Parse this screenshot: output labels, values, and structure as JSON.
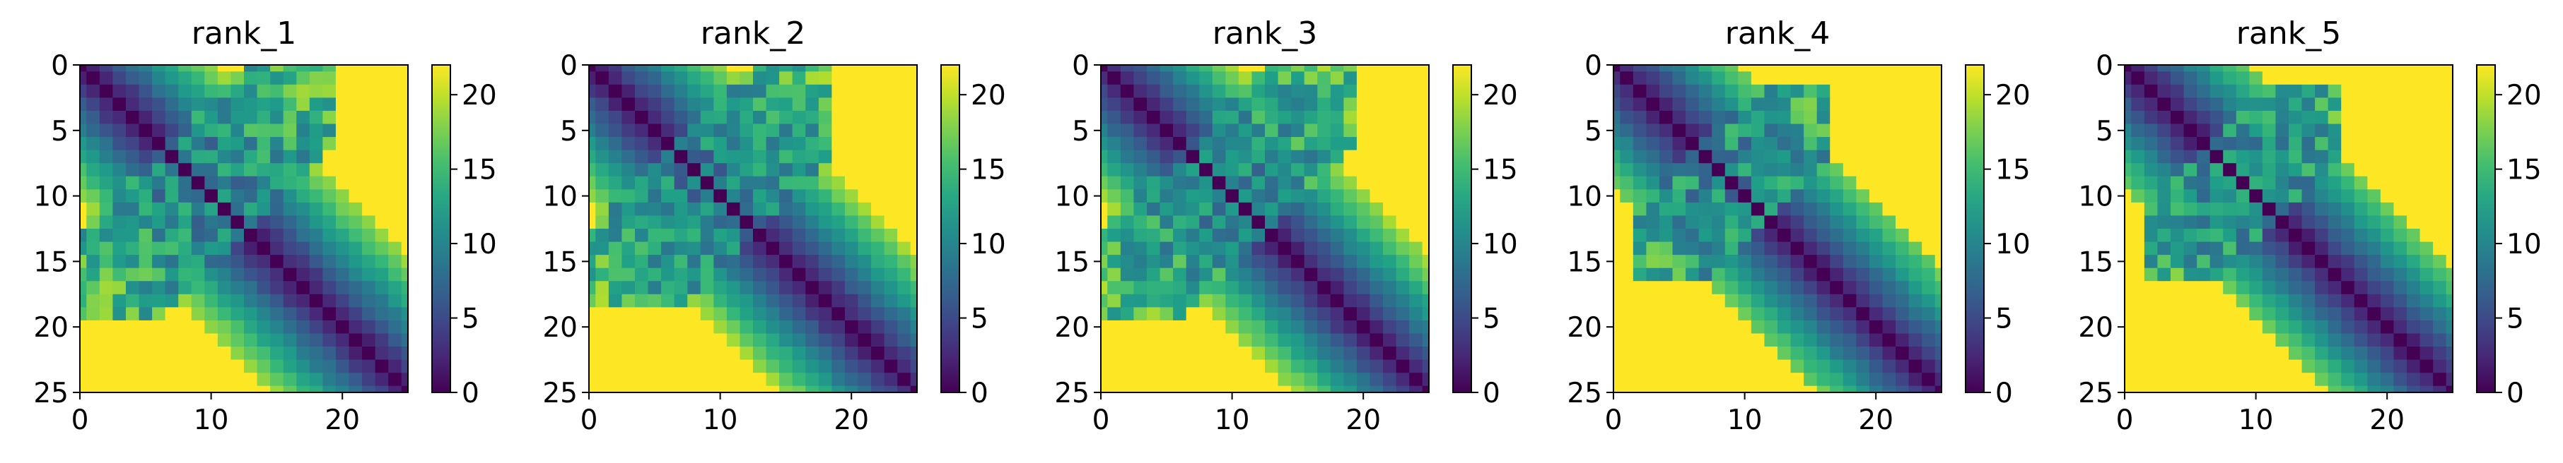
{
  "chart_data": [
    {
      "type": "heatmap",
      "title": "rank_1",
      "matrix_size": 26,
      "xlim": [
        0,
        25
      ],
      "ylim": [
        25,
        0
      ],
      "x_ticks": [
        "0",
        "10",
        "20"
      ],
      "y_ticks": [
        "0",
        "5",
        "10",
        "15",
        "20",
        "25"
      ],
      "colorbar": {
        "range": [
          0,
          22
        ],
        "ticks": [
          "0",
          "5",
          "10",
          "15",
          "20"
        ],
        "colormap": "viridis"
      },
      "saturation_value": 22,
      "description_of_values": "symmetric distance-like matrix; 0 on diagonal, increasing with |i-j|; far cells saturate at 22",
      "region": {
        "diag_band": 10,
        "cross_band": 6,
        "cross_center": 9.5,
        "cross_extent": [
          0,
          19
        ]
      }
    },
    {
      "type": "heatmap",
      "title": "rank_2",
      "matrix_size": 26,
      "xlim": [
        0,
        25
      ],
      "ylim": [
        25,
        0
      ],
      "x_ticks": [
        "0",
        "10",
        "20"
      ],
      "y_ticks": [
        "0",
        "5",
        "10",
        "15",
        "20",
        "25"
      ],
      "colorbar": {
        "range": [
          0,
          22
        ],
        "ticks": [
          "0",
          "5",
          "10",
          "15",
          "20"
        ],
        "colormap": "viridis"
      },
      "saturation_value": 22,
      "region": {
        "diag_band": 10,
        "cross_band": 6,
        "cross_center": 9.5,
        "cross_extent": [
          0,
          18
        ]
      }
    },
    {
      "type": "heatmap",
      "title": "rank_3",
      "matrix_size": 26,
      "xlim": [
        0,
        25
      ],
      "ylim": [
        25,
        0
      ],
      "x_ticks": [
        "0",
        "10",
        "20"
      ],
      "y_ticks": [
        "0",
        "5",
        "10",
        "15",
        "20",
        "25"
      ],
      "colorbar": {
        "range": [
          0,
          22
        ],
        "ticks": [
          "0",
          "5",
          "10",
          "15",
          "20"
        ],
        "colormap": "viridis"
      },
      "saturation_value": 22,
      "region": {
        "diag_band": 10,
        "cross_band": 6,
        "cross_center": 9.5,
        "cross_extent": [
          0,
          19
        ]
      }
    },
    {
      "type": "heatmap",
      "title": "rank_4",
      "matrix_size": 26,
      "xlim": [
        0,
        25
      ],
      "ylim": [
        25,
        0
      ],
      "x_ticks": [
        "0",
        "10",
        "20"
      ],
      "y_ticks": [
        "0",
        "5",
        "10",
        "15",
        "20",
        "25"
      ],
      "colorbar": {
        "range": [
          0,
          22
        ],
        "ticks": [
          "0",
          "5",
          "10",
          "15",
          "20"
        ],
        "colormap": "viridis"
      },
      "saturation_value": 22,
      "region": {
        "diag_band": 9,
        "cross_band": 5,
        "cross_center": 9.0,
        "cross_extent": [
          2,
          16
        ]
      }
    },
    {
      "type": "heatmap",
      "title": "rank_5",
      "matrix_size": 26,
      "xlim": [
        0,
        25
      ],
      "ylim": [
        25,
        0
      ],
      "x_ticks": [
        "0",
        "10",
        "20"
      ],
      "y_ticks": [
        "0",
        "5",
        "10",
        "15",
        "20",
        "25"
      ],
      "colorbar": {
        "range": [
          0,
          22
        ],
        "ticks": [
          "0",
          "5",
          "10",
          "15",
          "20"
        ],
        "colormap": "viridis"
      },
      "saturation_value": 22,
      "region": {
        "diag_band": 9,
        "cross_band": 5,
        "cross_center": 9.0,
        "cross_extent": [
          2,
          16
        ]
      }
    }
  ]
}
